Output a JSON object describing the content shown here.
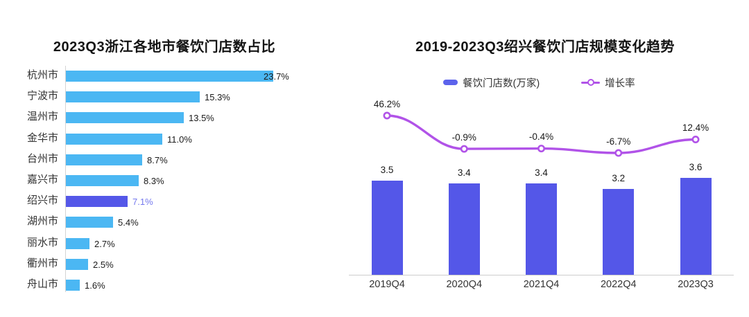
{
  "page": {
    "background": "#ffffff"
  },
  "colors": {
    "sky_blue_bar": "#4bb7f3",
    "indigo_bar": "#5457e8",
    "indigo_legend_swatch": "#5c63ec",
    "highlight_value_label": "#7478ee",
    "line_purple": "#b153e8",
    "axis_gray": "#cccccc",
    "title_text": "#141414",
    "label_text": "#333333"
  },
  "chart_data": [
    {
      "type": "bar",
      "orientation": "horizontal",
      "title": "2023Q3浙江各地市餐饮门店数占比",
      "categories": [
        "杭州市",
        "宁波市",
        "温州市",
        "金华市",
        "台州市",
        "嘉兴市",
        "绍兴市",
        "湖州市",
        "丽水市",
        "衢州市",
        "舟山市"
      ],
      "values": [
        23.7,
        15.3,
        13.5,
        11.0,
        8.7,
        8.3,
        7.1,
        5.4,
        2.7,
        2.5,
        1.6
      ],
      "value_labels": [
        "23.7%",
        "15.3%",
        "13.5%",
        "11.0%",
        "8.7%",
        "8.3%",
        "7.1%",
        "5.4%",
        "2.7%",
        "2.5%",
        "1.6%"
      ],
      "unit": "%",
      "xlim": [
        0,
        25
      ],
      "grid": false,
      "highlight_category": "绍兴市",
      "bar_color": "#4bb7f3",
      "highlight_bar_color": "#5457e8",
      "highlight_label_color": "#7478ee"
    },
    {
      "type": "bar+line",
      "title": "2019-2023Q3绍兴餐饮门店规模变化趋势",
      "categories": [
        "2019Q4",
        "2020Q4",
        "2021Q4",
        "2022Q4",
        "2023Q3"
      ],
      "legend_position": "top",
      "grid": false,
      "series": [
        {
          "name": "餐饮门店数(万家)",
          "type": "bar",
          "values": [
            3.5,
            3.4,
            3.4,
            3.2,
            3.6
          ],
          "value_labels": [
            "3.5",
            "3.4",
            "3.4",
            "3.2",
            "3.6"
          ],
          "color": "#5457e8",
          "ylim": [
            0,
            4
          ]
        },
        {
          "name": "增长率",
          "type": "line",
          "values": [
            46.2,
            -0.9,
            -0.4,
            -6.7,
            12.4
          ],
          "value_labels": [
            "46.2%",
            "-0.9%",
            "-0.4%",
            "-6.7%",
            "12.4%"
          ],
          "color": "#b153e8",
          "marker": "hollow-circle",
          "smooth": true,
          "unit": "%"
        }
      ]
    }
  ]
}
